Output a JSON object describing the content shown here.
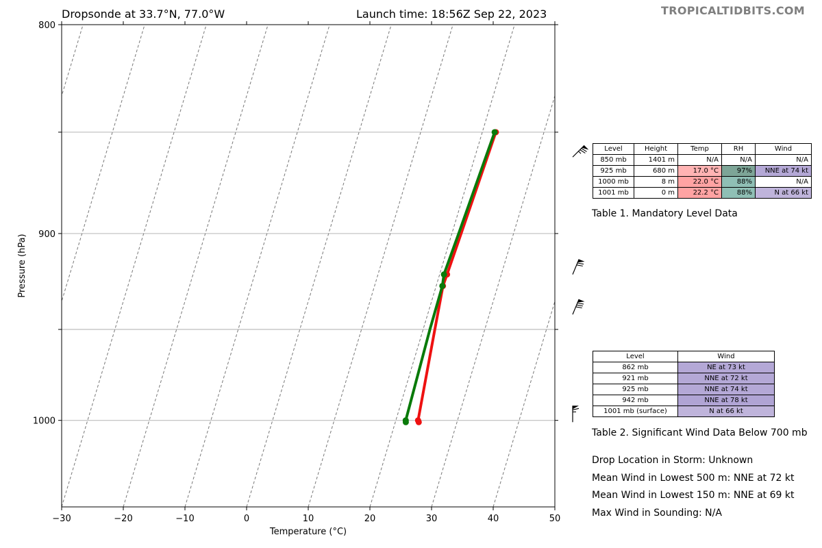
{
  "header": {
    "left_title": "Dropsonde at 33.7°N, 77.0°W",
    "right_title": "Launch time: 18:56Z Sep 22, 2023",
    "watermark": "TROPICALTIDBITS.COM"
  },
  "chart_data": {
    "type": "line",
    "subtype": "skew-t log-p sounding",
    "xlabel": "Temperature (°C)",
    "ylabel": "Pressure (hPa)",
    "xlim": [
      -30,
      50
    ],
    "ylim": [
      1050,
      800
    ],
    "y_scale": "log",
    "x_ticks": [
      "−30",
      "−20",
      "−10",
      "0",
      "10",
      "20",
      "30",
      "40",
      "50"
    ],
    "y_ticks": [
      {
        "p": 800,
        "label": "800"
      },
      {
        "p": 850,
        "label": ""
      },
      {
        "p": 900,
        "label": "900"
      },
      {
        "p": 950,
        "label": ""
      },
      {
        "p": 1000,
        "label": "1000"
      }
    ],
    "grid": "horizontal isobars at 850, 900, 950, 1000 hPa; dashed skewed isotherms every 10 °C",
    "skew_deg_per_decade_note": "isotherms slant to the right with height",
    "series": [
      {
        "color": "#ee1111",
        "role": "temperature",
        "points": [
          {
            "p": 850,
            "t": 22.2
          },
          {
            "p": 900,
            "t": 21.5
          },
          {
            "p": 921,
            "t": 21.2
          },
          {
            "p": 927,
            "t": 21.1
          },
          {
            "p": 950,
            "t": 21.9
          },
          {
            "p": 1000,
            "t": 23.6
          },
          {
            "p": 1001,
            "t": 23.8
          }
        ],
        "markers": [
          850,
          921,
          927,
          1000,
          1001
        ]
      },
      {
        "color": "#0a7a0a",
        "role": "dewpoint",
        "points": [
          {
            "p": 850,
            "t": 22.0
          },
          {
            "p": 900,
            "t": 21.1
          },
          {
            "p": 921,
            "t": 20.7
          },
          {
            "p": 927,
            "t": 21.0
          },
          {
            "p": 950,
            "t": 21.1
          },
          {
            "p": 1000,
            "t": 21.6
          },
          {
            "p": 1001,
            "t": 21.7
          }
        ],
        "markers": [
          850,
          921,
          927,
          1000,
          1001
        ]
      }
    ],
    "wind_barbs": [
      {
        "p": 862,
        "dir": "NE",
        "speed_kt": 73
      },
      {
        "p": 921,
        "dir": "NNE",
        "speed_kt": 72
      },
      {
        "p": 942,
        "dir": "NNE",
        "speed_kt": 78
      },
      {
        "p": 1001,
        "dir": "N",
        "speed_kt": 66
      }
    ]
  },
  "table1": {
    "headers": [
      "Level",
      "Height",
      "Temp",
      "RH",
      "Wind"
    ],
    "rows": [
      {
        "level": "850 mb",
        "height": "1401 m",
        "temp": "N/A",
        "rh": "N/A",
        "wind": "N/A",
        "temp_bg": "#ffffff",
        "rh_bg": "#ffffff",
        "wind_bg": "#ffffff"
      },
      {
        "level": "925 mb",
        "height": "680 m",
        "temp": "17.0 °C",
        "rh": "97%",
        "wind": "NNE at 74 kt",
        "temp_bg": "#ffb3b3",
        "rh_bg": "#7da597",
        "wind_bg": "#b4a8d6"
      },
      {
        "level": "1000 mb",
        "height": "8 m",
        "temp": "22.0 °C",
        "rh": "88%",
        "wind": "N/A",
        "temp_bg": "#ffa3a3",
        "rh_bg": "#8fbfb5",
        "wind_bg": "#ffffff"
      },
      {
        "level": "1001 mb",
        "height": "0 m",
        "temp": "22.2 °C",
        "rh": "88%",
        "wind": "N at 66 kt",
        "temp_bg": "#ffa3a3",
        "rh_bg": "#8fbfb5",
        "wind_bg": "#bfb4db"
      }
    ],
    "caption": "Table 1. Mandatory Level Data"
  },
  "table2": {
    "headers": [
      "Level",
      "Wind"
    ],
    "rows": [
      {
        "level": "862 mb",
        "wind": "NE at 73 kt",
        "wind_bg": "#b4a8d6"
      },
      {
        "level": "921 mb",
        "wind": "NNE at 72 kt",
        "wind_bg": "#b4a8d6"
      },
      {
        "level": "925 mb",
        "wind": "NNE at 74 kt",
        "wind_bg": "#b4a8d6"
      },
      {
        "level": "942 mb",
        "wind": "NNE at 78 kt",
        "wind_bg": "#b0a4d4"
      },
      {
        "level": "1001 mb (surface)",
        "wind": "N at 66 kt",
        "wind_bg": "#bfb4db"
      }
    ],
    "caption": "Table 2. Significant Wind Data Below 700 mb"
  },
  "summary": {
    "drop_location": "Drop Location in Storm: Unknown",
    "mean_500": "Mean Wind in Lowest 500 m:  NNE at 72 kt",
    "mean_150": "Mean Wind in Lowest 150 m:  NNE at 69 kt",
    "max_wind": "Max Wind in Sounding:  N/A"
  }
}
